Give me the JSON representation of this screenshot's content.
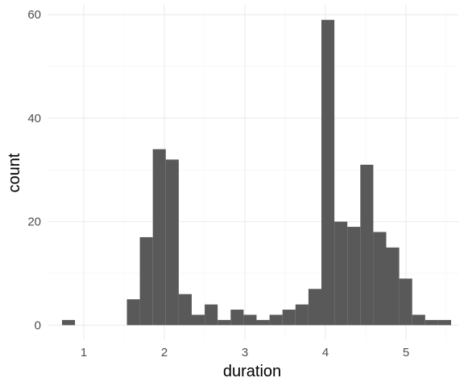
{
  "chart_data": {
    "type": "bar",
    "subtype": "histogram",
    "xlabel": "duration",
    "ylabel": "count",
    "x_ticks": [
      1,
      2,
      3,
      4,
      5
    ],
    "y_ticks": [
      0,
      20,
      40,
      60
    ],
    "xlim": [
      0.55,
      5.65
    ],
    "ylim": [
      -2.9,
      61.9
    ],
    "grid": true,
    "bar_color": "#595959",
    "bin_width": 0.1607,
    "bins": [
      {
        "x0": 0.73,
        "x1": 0.891,
        "count": 1
      },
      {
        "x0": 0.891,
        "x1": 1.052,
        "count": 0
      },
      {
        "x0": 1.052,
        "x1": 1.213,
        "count": 0
      },
      {
        "x0": 1.213,
        "x1": 1.374,
        "count": 0
      },
      {
        "x0": 1.374,
        "x1": 1.535,
        "count": 0
      },
      {
        "x0": 1.535,
        "x1": 1.696,
        "count": 5
      },
      {
        "x0": 1.696,
        "x1": 1.857,
        "count": 17
      },
      {
        "x0": 1.857,
        "x1": 2.018,
        "count": 34
      },
      {
        "x0": 2.018,
        "x1": 2.179,
        "count": 32
      },
      {
        "x0": 2.179,
        "x1": 2.34,
        "count": 6
      },
      {
        "x0": 2.34,
        "x1": 2.501,
        "count": 2
      },
      {
        "x0": 2.501,
        "x1": 2.662,
        "count": 4
      },
      {
        "x0": 2.662,
        "x1": 2.823,
        "count": 1
      },
      {
        "x0": 2.823,
        "x1": 2.984,
        "count": 3
      },
      {
        "x0": 2.984,
        "x1": 3.145,
        "count": 2
      },
      {
        "x0": 3.145,
        "x1": 3.306,
        "count": 1
      },
      {
        "x0": 3.306,
        "x1": 3.467,
        "count": 2
      },
      {
        "x0": 3.467,
        "x1": 3.628,
        "count": 3
      },
      {
        "x0": 3.628,
        "x1": 3.789,
        "count": 4
      },
      {
        "x0": 3.789,
        "x1": 3.95,
        "count": 7
      },
      {
        "x0": 3.95,
        "x1": 4.111,
        "count": 59
      },
      {
        "x0": 4.111,
        "x1": 4.272,
        "count": 20
      },
      {
        "x0": 4.272,
        "x1": 4.433,
        "count": 19
      },
      {
        "x0": 4.433,
        "x1": 4.594,
        "count": 31
      },
      {
        "x0": 4.594,
        "x1": 4.755,
        "count": 18
      },
      {
        "x0": 4.755,
        "x1": 4.916,
        "count": 15
      },
      {
        "x0": 4.916,
        "x1": 5.077,
        "count": 9
      },
      {
        "x0": 5.077,
        "x1": 5.238,
        "count": 2
      },
      {
        "x0": 5.238,
        "x1": 5.399,
        "count": 1
      },
      {
        "x0": 5.399,
        "x1": 5.56,
        "count": 1
      }
    ]
  }
}
